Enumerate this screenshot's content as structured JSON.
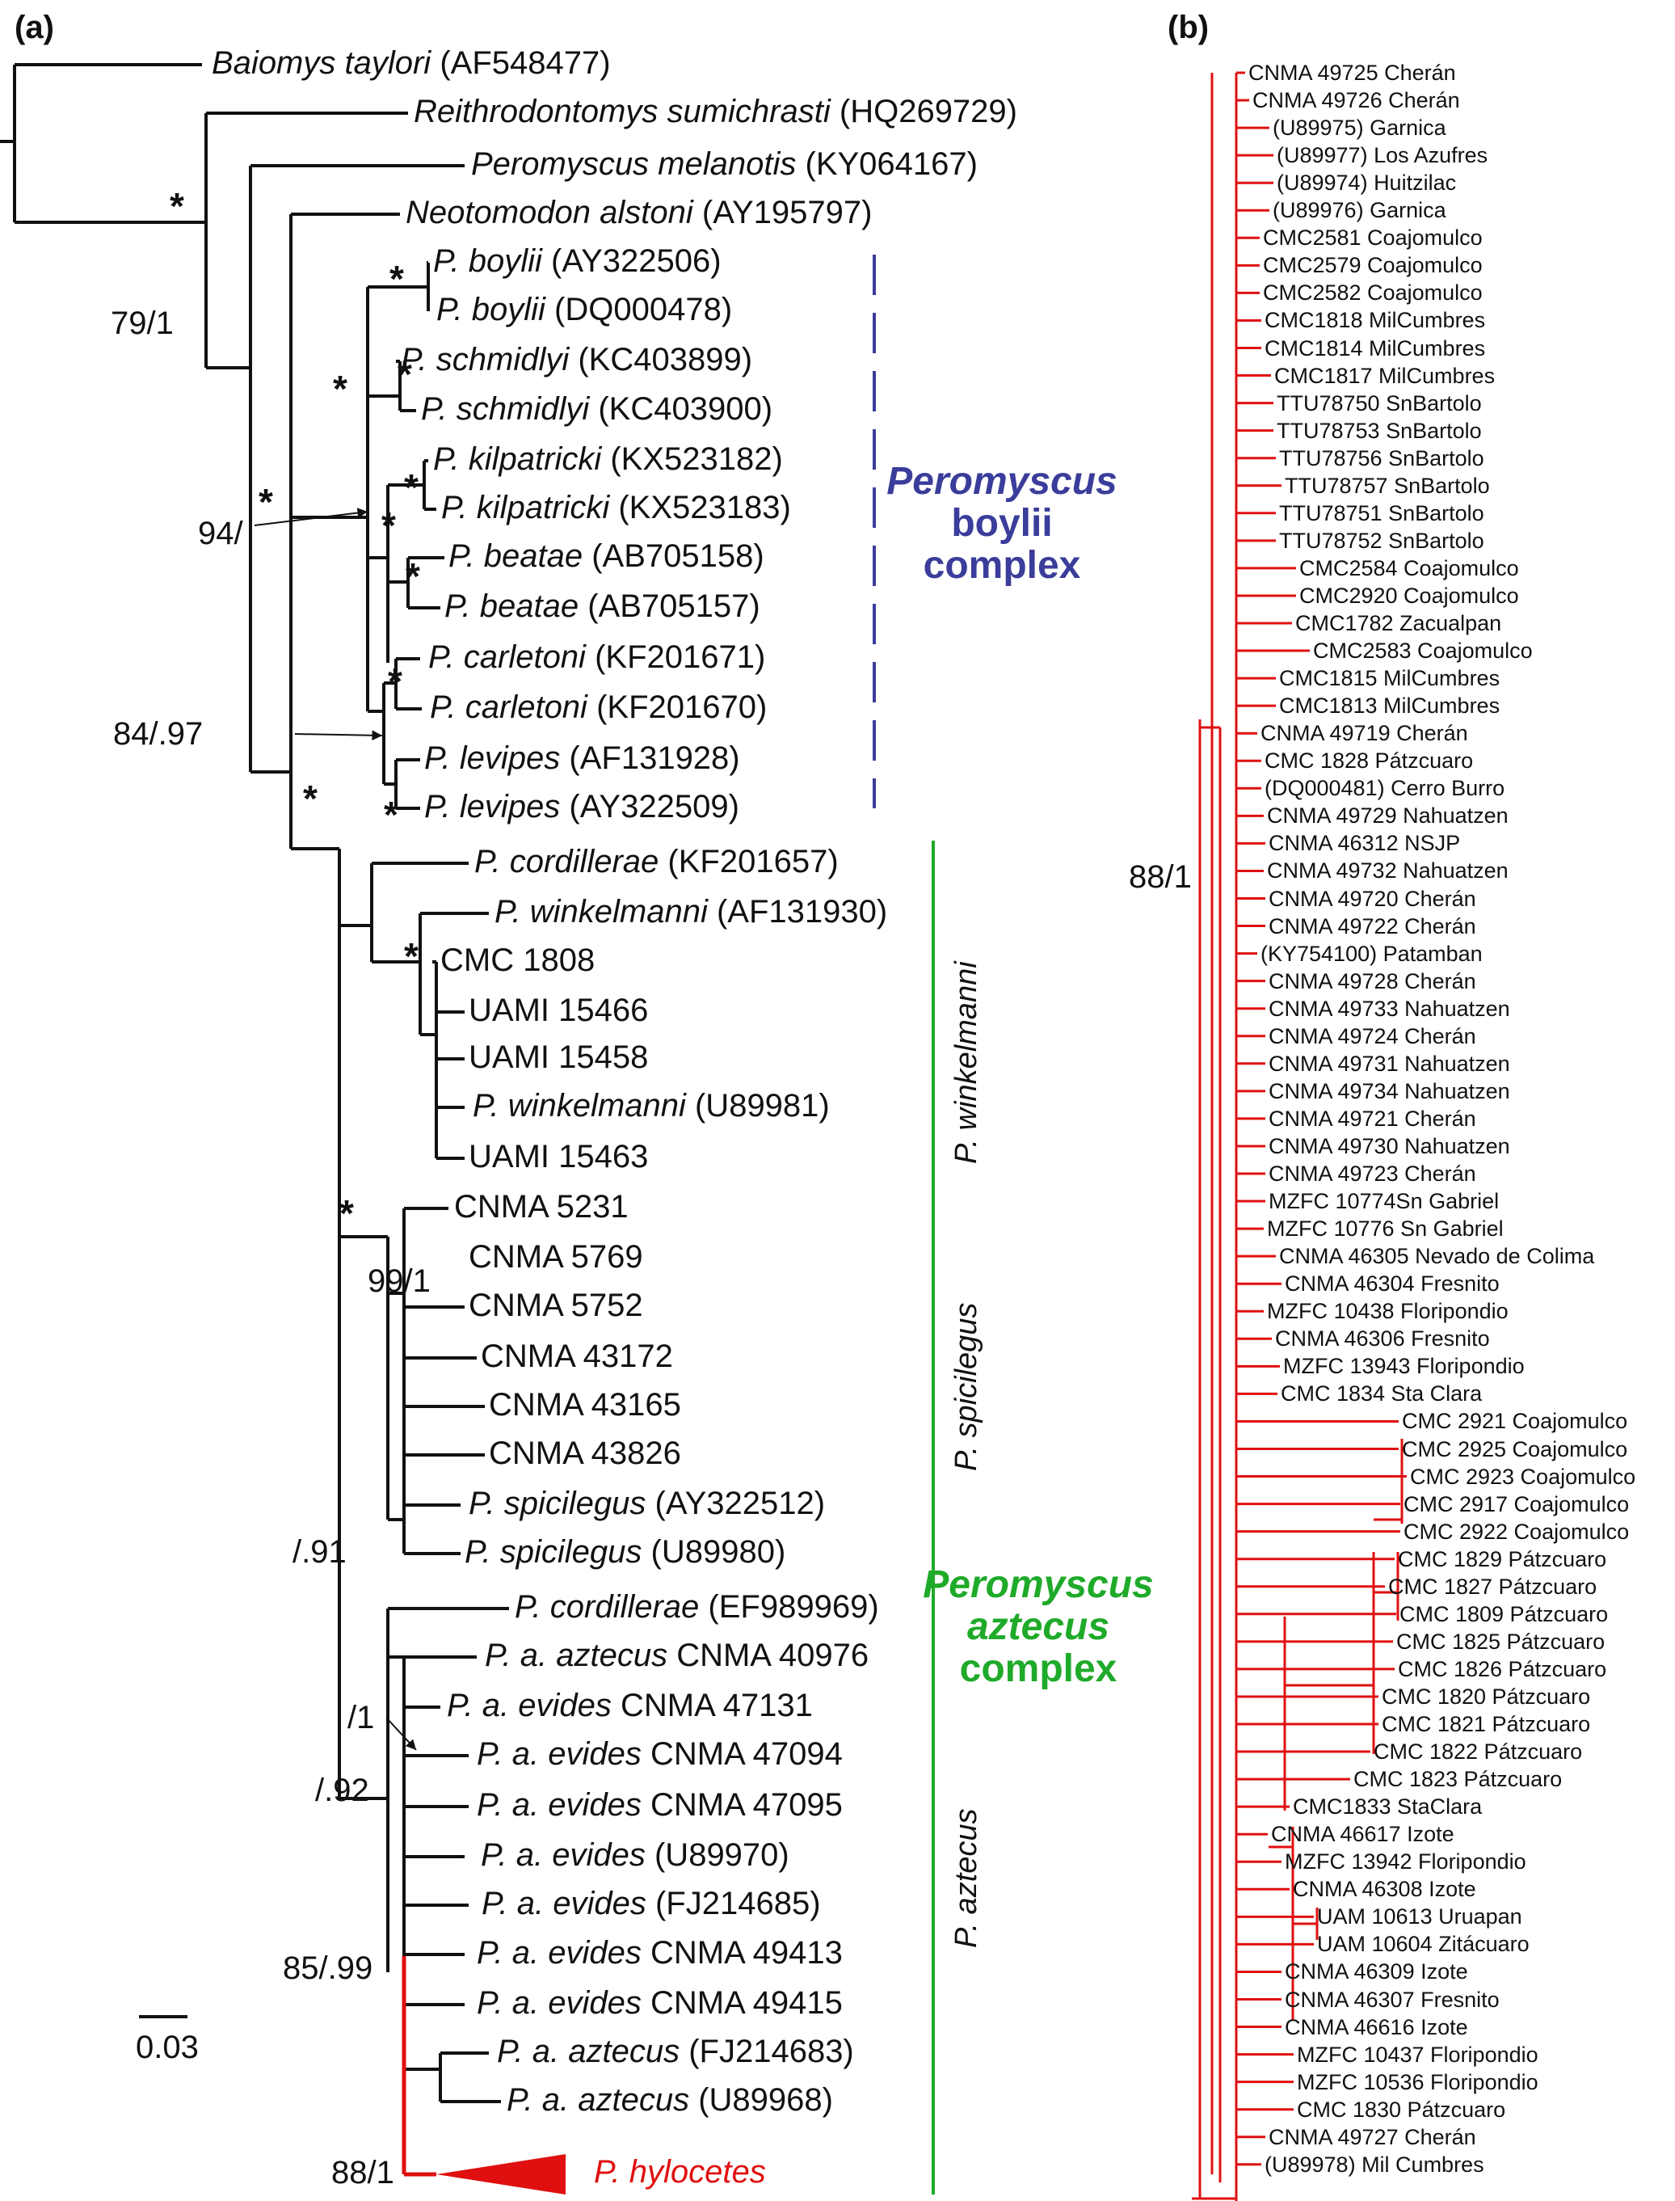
{
  "panel_labels": {
    "a": "(a)",
    "b": "(b)"
  },
  "scale_bar": "0.03",
  "taxa_a": [
    {
      "genus": "Baiomys taylori",
      "acc": "(AF548477)"
    },
    {
      "genus": "Reithrodontomys sumichrasti",
      "acc": "(HQ269729)"
    },
    {
      "genus": "Peromyscus melanotis",
      "acc": "(KY064167)"
    },
    {
      "genus": "Neotomodon alstoni",
      "acc": "(AY195797)"
    },
    {
      "genus": "P. boylii",
      "acc": "(AY322506)"
    },
    {
      "genus": "P. boylii",
      "acc": "(DQ000478)"
    },
    {
      "genus": "P. schmidlyi",
      "acc": "(KC403899)"
    },
    {
      "genus": "P. schmidlyi",
      "acc": "(KC403900)"
    },
    {
      "genus": "P. kilpatricki",
      "acc": "(KX523182)"
    },
    {
      "genus": "P. kilpatricki",
      "acc": "(KX523183)"
    },
    {
      "genus": "P. beatae",
      "acc": "(AB705158)"
    },
    {
      "genus": "P. beatae",
      "acc": "(AB705157)"
    },
    {
      "genus": "P. carletoni",
      "acc": "(KF201671)"
    },
    {
      "genus": "P. carletoni",
      "acc": "(KF201670)"
    },
    {
      "genus": "P. levipes",
      "acc": "(AF131928)"
    },
    {
      "genus": "P. levipes",
      "acc": "(AY322509)"
    },
    {
      "genus": "P. cordillerae",
      "acc": "(KF201657)"
    },
    {
      "genus": "P. winkelmanni",
      "acc": "(AF131930)"
    },
    {
      "genus": "",
      "acc": "CMC 1808"
    },
    {
      "genus": "",
      "acc": "UAMI 15466"
    },
    {
      "genus": "",
      "acc": "UAMI 15458"
    },
    {
      "genus": "P. winkelmanni",
      "acc": "(U89981)"
    },
    {
      "genus": "",
      "acc": "UAMI 15463"
    },
    {
      "genus": "",
      "acc": "CNMA 5231"
    },
    {
      "genus": "",
      "acc": "CNMA 5769"
    },
    {
      "genus": "",
      "acc": "CNMA 5752"
    },
    {
      "genus": "",
      "acc": "CNMA 43172"
    },
    {
      "genus": "",
      "acc": "CNMA 43165"
    },
    {
      "genus": "",
      "acc": "CNMA 43826"
    },
    {
      "genus": "P. spicilegus",
      "acc": "(AY322512)"
    },
    {
      "genus": "P. spicilegus",
      "acc": "(U89980)"
    },
    {
      "genus": "P. cordillerae",
      "acc": "(EF989969)"
    },
    {
      "genus": "P. a. aztecus",
      "acc": "CNMA 40976"
    },
    {
      "genus": "P. a. evides",
      "acc": "CNMA 47131"
    },
    {
      "genus": "P. a. evides",
      "acc": "CNMA 47094"
    },
    {
      "genus": "P. a. evides",
      "acc": "CNMA 47095"
    },
    {
      "genus": "P. a. evides",
      "acc": "(U89970)"
    },
    {
      "genus": "P. a. evides",
      "acc": "(FJ214685)"
    },
    {
      "genus": "P. a. evides",
      "acc": "CNMA 49413"
    },
    {
      "genus": "P. a. evides",
      "acc": "CNMA 49415"
    },
    {
      "genus": "P. a. aztecus",
      "acc": "(FJ214683)"
    },
    {
      "genus": "P. a. aztecus",
      "acc": "(U89968)"
    }
  ],
  "collapsed_clade": "P. hylocetes",
  "support_a": [
    "79/1",
    "94/",
    "84/.97",
    "99/1",
    "/.91",
    "/1",
    "/.92",
    "85/.99",
    "88/1"
  ],
  "groups": {
    "boylii": [
      "Peromyscus",
      "boylii",
      "complex"
    ],
    "aztecus": [
      "Peromyscus",
      "aztecus",
      "complex"
    ],
    "winkelmanni": "P. winkelmanni",
    "spicilegus": "P. spicilegus",
    "aztecus_sub": "P. aztecus"
  },
  "support_b": "88/1",
  "taxa_b": [
    "CNMA 49725 Cherán",
    "CNMA 49726 Cherán",
    "(U89975) Garnica",
    "(U89977) Los Azufres",
    "(U89974) Huitzilac",
    "(U89976) Garnica",
    "CMC2581 Coajomulco",
    "CMC2579 Coajomulco",
    "CMC2582 Coajomulco",
    "CMC1818 MilCumbres",
    "CMC1814 MilCumbres",
    "CMC1817 MilCumbres",
    "TTU78750 SnBartolo",
    "TTU78753 SnBartolo",
    "TTU78756 SnBartolo",
    "TTU78757 SnBartolo",
    "TTU78751 SnBartolo",
    "TTU78752 SnBartolo",
    "CMC2584 Coajomulco",
    "CMC2920 Coajomulco",
    "CMC1782 Zacualpan",
    "CMC2583 Coajomulco",
    "CMC1815 MilCumbres",
    "CMC1813 MilCumbres",
    "CNMA 49719 Cherán",
    "CMC 1828 Pátzcuaro",
    "(DQ000481) Cerro Burro",
    "CNMA 49729 Nahuatzen",
    "CNMA 46312 NSJP",
    "CNMA 49732 Nahuatzen",
    "CNMA 49720 Cherán",
    "CNMA 49722 Cherán",
    "(KY754100) Patamban",
    "CNMA 49728 Cherán",
    "CNMA 49733 Nahuatzen",
    "CNMA 49724 Cherán",
    "CNMA 49731 Nahuatzen",
    "CNMA 49734 Nahuatzen",
    "CNMA 49721 Cherán",
    "CNMA 49730 Nahuatzen",
    "CNMA 49723 Cherán",
    "MZFC 10774Sn Gabriel",
    "MZFC 10776 Sn Gabriel",
    "CNMA 46305 Nevado  de Colima",
    "CNMA 46304 Fresnito",
    "MZFC 10438 Floripondio",
    "CNMA 46306 Fresnito",
    "MZFC 13943 Floripondio",
    "CMC 1834 Sta Clara",
    "CMC 2921 Coajomulco",
    "CMC 2925 Coajomulco",
    "CMC 2923 Coajomulco",
    "CMC 2917 Coajomulco",
    "CMC 2922 Coajomulco",
    "CMC 1829 Pátzcuaro",
    "CMC 1827 Pátzcuaro",
    "CMC 1809 Pátzcuaro",
    "CMC 1825 Pátzcuaro",
    "CMC 1826 Pátzcuaro",
    "CMC 1820 Pátzcuaro",
    "CMC 1821 Pátzcuaro",
    "CMC 1822 Pátzcuaro",
    "CMC 1823 Pátzcuaro",
    "CMC1833 StaClara",
    "CNMA 46617 Izote",
    "MZFC 13942 Floripondio",
    "CNMA 46308 Izote",
    "UAM 10613 Uruapan",
    "UAM 10604 Zitácuaro",
    "CNMA 46309 Izote",
    "CNMA 46307 Fresnito",
    "CNMA 46616 Izote",
    "MZFC 10437 Floripondio",
    "MZFC 10536 Floripondio",
    "CMC 1830 Pátzcuaro",
    "CNMA 49727 Cherán",
    "(U89978) Mil Cumbres"
  ],
  "colors": {
    "black": "#111111",
    "red": "#e01010",
    "blue": "#3a3d9a",
    "green": "#1faa2a"
  }
}
